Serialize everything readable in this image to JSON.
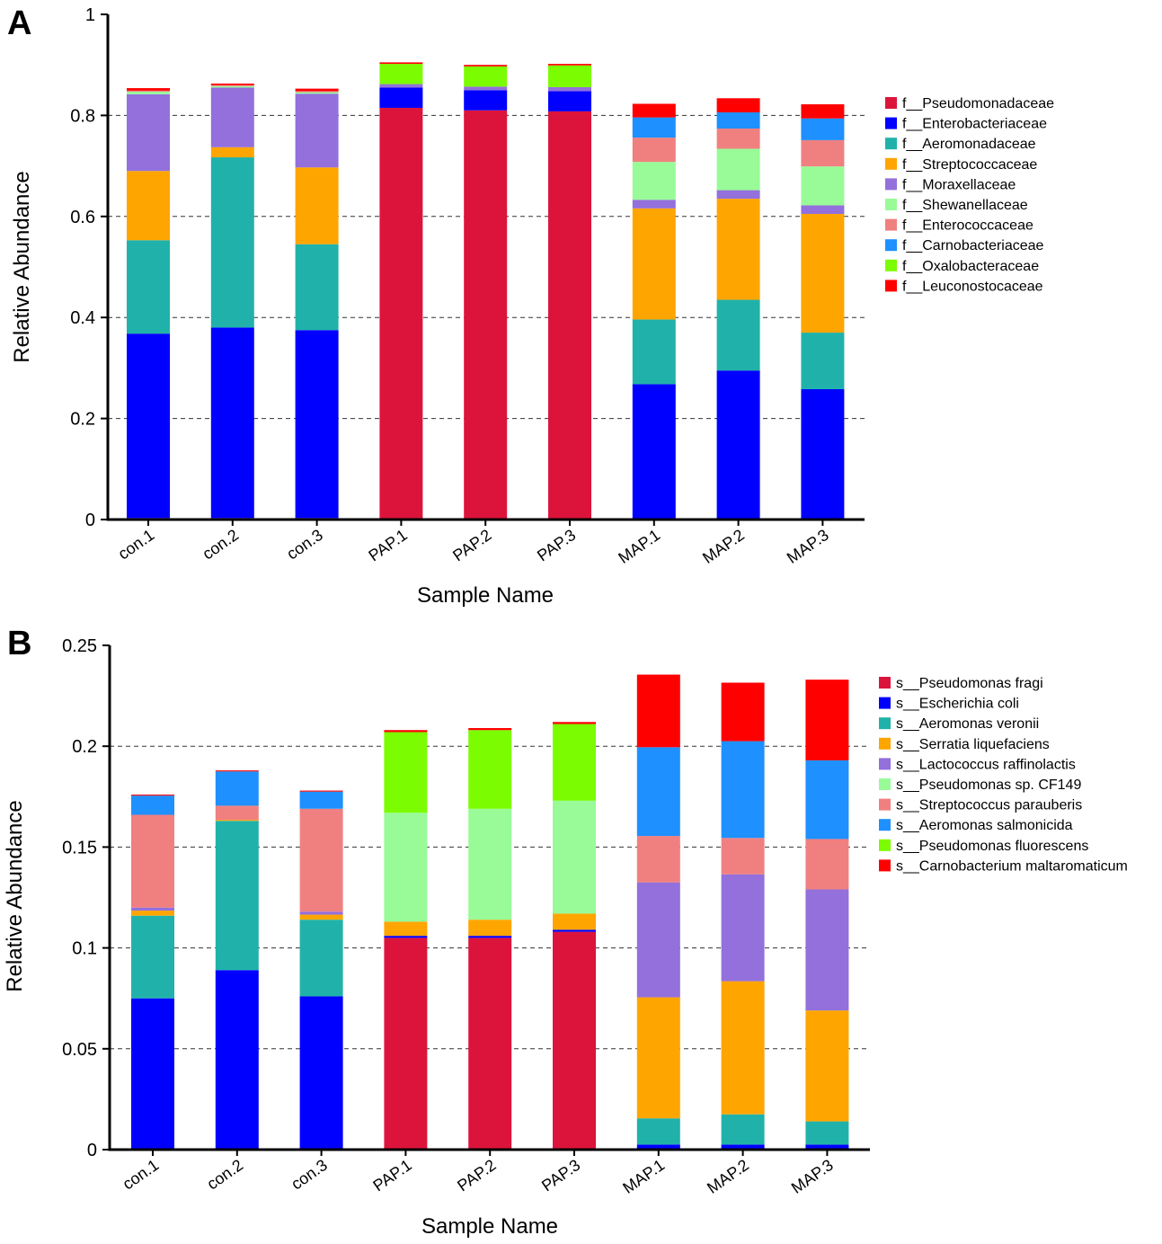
{
  "chart_data": [
    {
      "type": "bar",
      "stacked": true,
      "panel": "A",
      "xlabel": "Sample Name",
      "ylabel": "Relative Abundance",
      "ylim": [
        0,
        1
      ],
      "yticks": [
        0,
        0.2,
        0.4,
        0.6,
        0.8,
        1
      ],
      "ytick_labels": [
        "0",
        "0.2",
        "0.4",
        "0.6",
        "0.8",
        "1"
      ],
      "grid": true,
      "legend_position": "right",
      "categories": [
        "con.1",
        "con.2",
        "con.3",
        "PAP.1",
        "PAP.2",
        "PAP.3",
        "MAP.1",
        "MAP.2",
        "MAP.3"
      ],
      "series": [
        {
          "name": "f__Pseudomonadaceae",
          "color": "#dc143c",
          "values": [
            0.003,
            0.003,
            0.003,
            0.815,
            0.81,
            0.808,
            0.0,
            0.0,
            0.0
          ]
        },
        {
          "name": "f__Enterobacteriaceae",
          "color": "#0000ff",
          "values": [
            0.365,
            0.377,
            0.372,
            0.04,
            0.04,
            0.04,
            0.268,
            0.295,
            0.258
          ]
        },
        {
          "name": "f__Aeromonadaceae",
          "color": "#20b2aa",
          "values": [
            0.185,
            0.337,
            0.17,
            0.0,
            0.0,
            0.0,
            0.128,
            0.14,
            0.112
          ]
        },
        {
          "name": "f__Streptococcaceae",
          "color": "#ffa500",
          "values": [
            0.137,
            0.02,
            0.152,
            0.0,
            0.0,
            0.0,
            0.22,
            0.2,
            0.235
          ]
        },
        {
          "name": "f__Moraxellaceae",
          "color": "#9370db",
          "values": [
            0.152,
            0.118,
            0.146,
            0.007,
            0.007,
            0.008,
            0.017,
            0.017,
            0.017
          ]
        },
        {
          "name": "f__Shewanellaceae",
          "color": "#98fb98",
          "values": [
            0.005,
            0.003,
            0.003,
            0.0,
            0.0,
            0.0,
            0.075,
            0.082,
            0.077
          ]
        },
        {
          "name": "f__Enterococcaceae",
          "color": "#f08080",
          "values": [
            0.002,
            0.002,
            0.002,
            0.0,
            0.0,
            0.0,
            0.048,
            0.04,
            0.052
          ]
        },
        {
          "name": "f__Carnobacteriaceae",
          "color": "#1e90ff",
          "values": [
            0.0,
            0.0,
            0.0,
            0.0,
            0.0,
            0.0,
            0.04,
            0.032,
            0.043
          ]
        },
        {
          "name": "f__Oxalobacteraceae",
          "color": "#7cfc00",
          "values": [
            0.0,
            0.0,
            0.0,
            0.04,
            0.04,
            0.043,
            0.0,
            0.0,
            0.0
          ]
        },
        {
          "name": "f__Leuconostocaceae",
          "color": "#ff0000",
          "values": [
            0.005,
            0.003,
            0.005,
            0.003,
            0.003,
            0.003,
            0.027,
            0.028,
            0.028
          ]
        }
      ]
    },
    {
      "type": "bar",
      "stacked": true,
      "panel": "B",
      "xlabel": "Sample Name",
      "ylabel": "Relative Abundance",
      "ylim": [
        0,
        0.25
      ],
      "yticks": [
        0,
        0.05,
        0.1,
        0.15,
        0.2,
        0.25
      ],
      "ytick_labels": [
        "0",
        "0.05",
        "0.1",
        "0.15",
        "0.2",
        "0.25"
      ],
      "grid": true,
      "legend_position": "right",
      "categories": [
        "con.1",
        "con.2",
        "con.3",
        "PAP.1",
        "PAP.2",
        "PAP.3",
        "MAP.1",
        "MAP.2",
        "MAP.3"
      ],
      "series": [
        {
          "name": "s__Pseudomonas fragi",
          "color": "#dc143c",
          "values": [
            0.0,
            0.0,
            0.0,
            0.105,
            0.105,
            0.108,
            0.0,
            0.0,
            0.0
          ]
        },
        {
          "name": "s__Escherichia coli",
          "color": "#0000ff",
          "values": [
            0.075,
            0.089,
            0.076,
            0.001,
            0.001,
            0.001,
            0.0025,
            0.0025,
            0.0025
          ]
        },
        {
          "name": "s__Aeromonas veronii",
          "color": "#20b2aa",
          "values": [
            0.041,
            0.074,
            0.038,
            0.0,
            0.0,
            0.0,
            0.013,
            0.015,
            0.0115
          ]
        },
        {
          "name": "s__Serratia liquefaciens",
          "color": "#ffa500",
          "values": [
            0.0025,
            0.0005,
            0.0025,
            0.007,
            0.008,
            0.008,
            0.06,
            0.066,
            0.055
          ]
        },
        {
          "name": "s__Lactococcus raffinolactis",
          "color": "#9370db",
          "values": [
            0.0015,
            0.0,
            0.0015,
            0.0,
            0.0,
            0.0,
            0.057,
            0.053,
            0.06
          ]
        },
        {
          "name": "s__Pseudomonas sp. CF149",
          "color": "#98fb98",
          "values": [
            0.0,
            0.0,
            0.0,
            0.054,
            0.055,
            0.056,
            0.0,
            0.0,
            0.0
          ]
        },
        {
          "name": "s__Streptococcus parauberis",
          "color": "#f08080",
          "values": [
            0.046,
            0.007,
            0.051,
            0.0,
            0.0,
            0.0,
            0.023,
            0.018,
            0.025
          ]
        },
        {
          "name": "s__Aeromonas salmonicida",
          "color": "#1e90ff",
          "values": [
            0.0095,
            0.017,
            0.0085,
            0.0,
            0.0,
            0.0,
            0.044,
            0.048,
            0.039
          ]
        },
        {
          "name": "s__Pseudomonas fluorescens",
          "color": "#7cfc00",
          "values": [
            0.0,
            0.0,
            0.0,
            0.04,
            0.039,
            0.038,
            0.0,
            0.0,
            0.0
          ]
        },
        {
          "name": "s__Carnobacterium maltaromaticum",
          "color": "#ff0000",
          "values": [
            0.0005,
            0.0005,
            0.0005,
            0.001,
            0.001,
            0.001,
            0.036,
            0.029,
            0.04
          ]
        }
      ]
    }
  ]
}
